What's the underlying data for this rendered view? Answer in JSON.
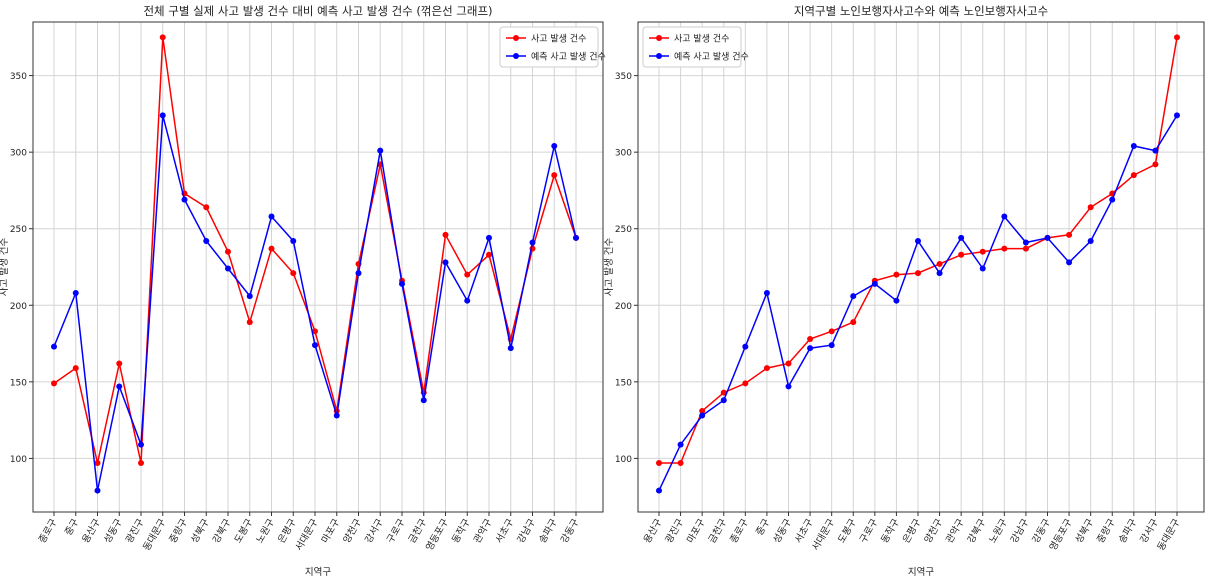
{
  "chart_data": [
    {
      "type": "line",
      "title": "전체 구별 실제 사고 발생 건수 대비 예측 사고 발생 건수 (꺾은선 그래프)",
      "xlabel": "지역구",
      "ylabel": "사고 발생 건수",
      "ylim": [
        65,
        385
      ],
      "yticks": [
        100,
        150,
        200,
        250,
        300,
        350
      ],
      "grid": true,
      "legend_position": "top-right",
      "categories": [
        "종로구",
        "중구",
        "용산구",
        "성동구",
        "광진구",
        "동대문구",
        "중랑구",
        "성북구",
        "강북구",
        "도봉구",
        "노원구",
        "은평구",
        "서대문구",
        "마포구",
        "양천구",
        "강서구",
        "구로구",
        "금천구",
        "영등포구",
        "동작구",
        "관악구",
        "서초구",
        "강남구",
        "송파구",
        "강동구"
      ],
      "series": [
        {
          "name": "사고 발생 건수",
          "color": "#ff0000",
          "values": [
            149,
            159,
            97,
            162,
            97,
            375,
            273,
            264,
            235,
            189,
            237,
            221,
            183,
            131,
            227,
            292,
            216,
            143,
            246,
            220,
            233,
            178,
            237,
            285,
            244
          ]
        },
        {
          "name": "예측 사고 발생 건수",
          "color": "#0000ff",
          "values": [
            173,
            208,
            79,
            147,
            109,
            324,
            269,
            242,
            224,
            206,
            258,
            242,
            174,
            128,
            221,
            301,
            214,
            138,
            228,
            203,
            244,
            172,
            241,
            304,
            244
          ]
        }
      ]
    },
    {
      "type": "line",
      "title": "지역구별 노인보행자사고수와 예측 노인보행자사고수",
      "xlabel": "지역구",
      "ylabel": "사고 발생 건수",
      "ylim": [
        65,
        385
      ],
      "yticks": [
        100,
        150,
        200,
        250,
        300,
        350
      ],
      "grid": true,
      "legend_position": "top-left",
      "categories": [
        "용산구",
        "광진구",
        "마포구",
        "금천구",
        "종로구",
        "중구",
        "성동구",
        "서초구",
        "서대문구",
        "도봉구",
        "구로구",
        "동작구",
        "은평구",
        "양천구",
        "관악구",
        "강북구",
        "노원구",
        "강남구",
        "강동구",
        "영등포구",
        "성북구",
        "중랑구",
        "송파구",
        "강서구",
        "동대문구"
      ],
      "series": [
        {
          "name": "사고 발생 건수",
          "color": "#ff0000",
          "values": [
            97,
            97,
            131,
            143,
            149,
            159,
            162,
            178,
            183,
            189,
            216,
            220,
            221,
            227,
            233,
            235,
            237,
            237,
            244,
            246,
            264,
            273,
            285,
            292,
            375
          ]
        },
        {
          "name": "예측 사고 발생 건수",
          "color": "#0000ff",
          "values": [
            79,
            109,
            128,
            138,
            173,
            208,
            147,
            172,
            174,
            206,
            214,
            203,
            242,
            221,
            244,
            224,
            258,
            241,
            244,
            228,
            242,
            269,
            304,
            301,
            324
          ]
        }
      ]
    }
  ]
}
